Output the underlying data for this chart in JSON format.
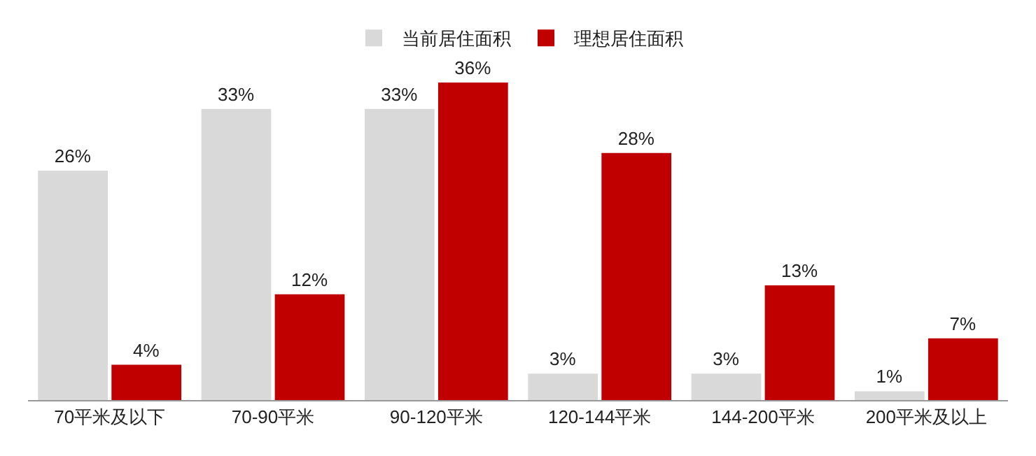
{
  "chart_data": {
    "type": "bar",
    "categories": [
      "70平米及以下",
      "70-90平米",
      "90-120平米",
      "120-144平米",
      "144-200平米",
      "200平米及以上"
    ],
    "series": [
      {
        "name": "当前居住面积",
        "color": "#d9d9d9",
        "values": [
          26,
          33,
          33,
          3,
          3,
          1
        ],
        "value_labels": [
          "26%",
          "33%",
          "33%",
          "3%",
          "3%",
          "1%"
        ]
      },
      {
        "name": "理想居住面积",
        "color": "#c00000",
        "values": [
          4,
          12,
          36,
          28,
          13,
          7
        ],
        "value_labels": [
          "4%",
          "12%",
          "36%",
          "28%",
          "13%",
          "7%"
        ]
      }
    ],
    "legend": "top"
  }
}
